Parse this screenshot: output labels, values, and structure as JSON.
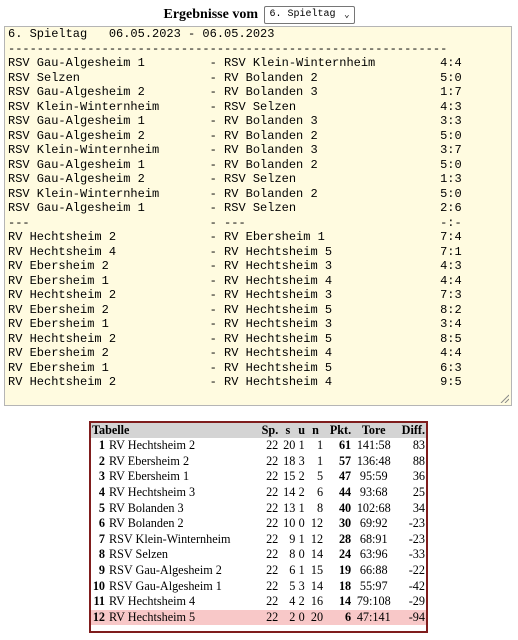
{
  "header": {
    "label": "Ergebnisse vom",
    "selected": "6. Spieltag"
  },
  "results": {
    "lines": [
      "6. Spieltag   06.05.2023 - 06.05.2023",
      "-------------------------------------------------------------",
      "RSV Gau-Algesheim 1         - RSV Klein-Winternheim         4:4",
      "RSV Selzen                  - RV Bolanden 2                 5:0",
      "RSV Gau-Algesheim 2         - RV Bolanden 3                 1:7",
      "RSV Klein-Winternheim       - RSV Selzen                    4:3",
      "RSV Gau-Algesheim 1         - RV Bolanden 3                 3:3",
      "RSV Gau-Algesheim 2         - RV Bolanden 2                 5:0",
      "RSV Klein-Winternheim       - RV Bolanden 3                 3:7",
      "RSV Gau-Algesheim 1         - RV Bolanden 2                 5:0",
      "RSV Gau-Algesheim 2         - RSV Selzen                    1:3",
      "RSV Klein-Winternheim       - RV Bolanden 2                 5:0",
      "RSV Gau-Algesheim 1         - RSV Selzen                    2:6",
      "---                         - ---                           -:-",
      "RV Hechtsheim 2             - RV Ebersheim 1                7:4",
      "RV Hechtsheim 4             - RV Hechtsheim 5               7:1",
      "RV Ebersheim 2              - RV Hechtsheim 3               4:3",
      "RV Ebersheim 1              - RV Hechtsheim 4               4:4",
      "RV Hechtsheim 2             - RV Hechtsheim 3               7:3",
      "RV Ebersheim 2              - RV Hechtsheim 5               8:2",
      "RV Ebersheim 1              - RV Hechtsheim 3               3:4",
      "RV Hechtsheim 2             - RV Hechtsheim 5               8:5",
      "RV Ebersheim 2              - RV Hechtsheim 4               4:4",
      "RV Ebersheim 1              - RV Hechtsheim 5               6:3",
      "RV Hechtsheim 2             - RV Hechtsheim 4               9:5"
    ]
  },
  "table": {
    "headers": [
      "Tabelle",
      "Sp.",
      "s",
      "u",
      "n",
      "Pkt.",
      "Tore",
      "Diff."
    ],
    "rows": [
      {
        "rank": "1",
        "team": "RV Hechtsheim 2",
        "sp": "22",
        "s": "20",
        "u": "1",
        "n": "1",
        "pkt": "61",
        "tore": "141:58",
        "diff": "83"
      },
      {
        "rank": "2",
        "team": "RV Ebersheim 2",
        "sp": "22",
        "s": "18",
        "u": "3",
        "n": "1",
        "pkt": "57",
        "tore": "136:48",
        "diff": "88"
      },
      {
        "rank": "3",
        "team": "RV Ebersheim 1",
        "sp": "22",
        "s": "15",
        "u": "2",
        "n": "5",
        "pkt": "47",
        "tore": "95:59",
        "diff": "36"
      },
      {
        "rank": "4",
        "team": "RV Hechtsheim 3",
        "sp": "22",
        "s": "14",
        "u": "2",
        "n": "6",
        "pkt": "44",
        "tore": "93:68",
        "diff": "25"
      },
      {
        "rank": "5",
        "team": "RV Bolanden 3",
        "sp": "22",
        "s": "13",
        "u": "1",
        "n": "8",
        "pkt": "40",
        "tore": "102:68",
        "diff": "34"
      },
      {
        "rank": "6",
        "team": "RV Bolanden 2",
        "sp": "22",
        "s": "10",
        "u": "0",
        "n": "12",
        "pkt": "30",
        "tore": "69:92",
        "diff": "-23"
      },
      {
        "rank": "7",
        "team": "RSV Klein-Winternheim",
        "sp": "22",
        "s": "9",
        "u": "1",
        "n": "12",
        "pkt": "28",
        "tore": "68:91",
        "diff": "-23"
      },
      {
        "rank": "8",
        "team": "RSV Selzen",
        "sp": "22",
        "s": "8",
        "u": "0",
        "n": "14",
        "pkt": "24",
        "tore": "63:96",
        "diff": "-33"
      },
      {
        "rank": "9",
        "team": "RSV Gau-Algesheim 2",
        "sp": "22",
        "s": "6",
        "u": "1",
        "n": "15",
        "pkt": "19",
        "tore": "66:88",
        "diff": "-22"
      },
      {
        "rank": "10",
        "team": "RSV Gau-Algesheim 1",
        "sp": "22",
        "s": "5",
        "u": "3",
        "n": "14",
        "pkt": "18",
        "tore": "55:97",
        "diff": "-42"
      },
      {
        "rank": "11",
        "team": "RV Hechtsheim 4",
        "sp": "22",
        "s": "4",
        "u": "2",
        "n": "16",
        "pkt": "14",
        "tore": "79:108",
        "diff": "-29"
      },
      {
        "rank": "12",
        "team": "RV Hechtsheim 5",
        "sp": "22",
        "s": "2",
        "u": "0",
        "n": "20",
        "pkt": "6",
        "tore": "47:141",
        "diff": "-94"
      }
    ]
  },
  "icons": {
    "select_arrow": "chevron-down-icon",
    "resize": "resize-grip-icon"
  }
}
